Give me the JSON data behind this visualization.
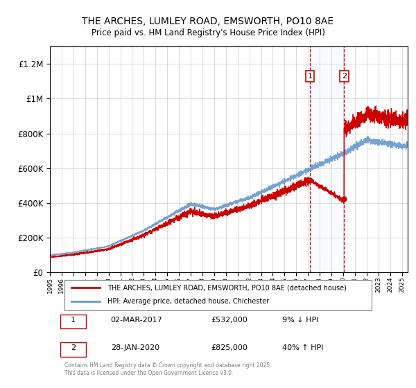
{
  "title": "THE ARCHES, LUMLEY ROAD, EMSWORTH, PO10 8AE",
  "subtitle": "Price paid vs. HM Land Registry's House Price Index (HPI)",
  "legend_line1": "THE ARCHES, LUMLEY ROAD, EMSWORTH, PO10 8AE (detached house)",
  "legend_line2": "HPI: Average price, detached house, Chichester",
  "annotation1_label": "1",
  "annotation1_date": "02-MAR-2017",
  "annotation1_price": "£532,000",
  "annotation1_hpi": "9% ↓ HPI",
  "annotation2_label": "2",
  "annotation2_date": "28-JAN-2020",
  "annotation2_price": "£825,000",
  "annotation2_hpi": "40% ↑ HPI",
  "footer": "Contains HM Land Registry data © Crown copyright and database right 2025.\nThis data is licensed under the Open Government Licence v3.0.",
  "price_color": "#cc0000",
  "hpi_color": "#6699cc",
  "shaded_color": "#ddeeff",
  "vline_color": "#cc0000",
  "annotation_box_color": "#cc0000",
  "ylim": [
    0,
    1300000
  ],
  "yticks": [
    0,
    200000,
    400000,
    600000,
    800000,
    1000000,
    1200000
  ],
  "sale1_year": 2017.17,
  "sale1_price": 532000,
  "sale2_year": 2020.08,
  "sale2_price": 825000,
  "figsize": [
    6.0,
    5.6
  ],
  "dpi": 100
}
